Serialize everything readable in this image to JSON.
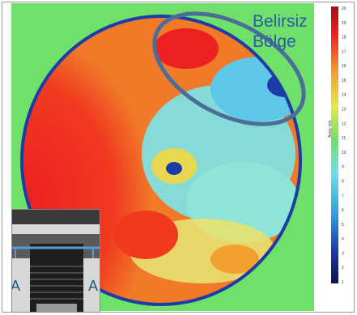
{
  "annotation": {
    "line1": "Belirsiz",
    "line2": "Bölge"
  },
  "colorbar": {
    "title": "Axisy m/s",
    "ticks": [
      "20",
      "19",
      "18",
      "17",
      "16",
      "15",
      "14",
      "13",
      "12",
      "11",
      "10",
      "9",
      "8",
      "7",
      "6",
      "5",
      "4",
      "3",
      "2",
      "1"
    ],
    "colors": [
      "#0a1450",
      "#1e3ca8",
      "#2f9fe0",
      "#6fe0e8",
      "#6fe06a",
      "#e8e84a",
      "#f2a030",
      "#ee2020",
      "#a01010"
    ]
  },
  "inset": {
    "label_left": "A",
    "label_right": "A"
  },
  "colors": {
    "background_field": "#6fe06a",
    "ellipse": "#4a6e9a",
    "section_line": "#5a9ad8"
  }
}
